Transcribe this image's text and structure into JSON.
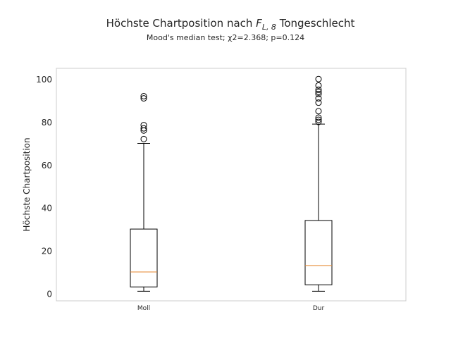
{
  "chart_data": {
    "type": "box",
    "title_main": "Höchste Chartposition nach ",
    "title_math_base": "F",
    "title_math_sub": "L, 8",
    "title_tail": " Tongeschlecht",
    "subtitle": "Mood's median test; χ2=2.368; p=0.124",
    "xlabel": "",
    "ylabel": "Höchste Chartposition",
    "ylim": [
      -3.5,
      105
    ],
    "yticks": [
      0,
      20,
      40,
      60,
      80,
      100
    ],
    "grid": false,
    "categories": [
      "Moll",
      "Dur"
    ],
    "boxes": [
      {
        "name": "Moll",
        "whisker_low": 1,
        "q1": 3,
        "median": 10,
        "q3": 30,
        "whisker_high": 70,
        "outliers": [
          72,
          76,
          77,
          78.5,
          91,
          92
        ]
      },
      {
        "name": "Dur",
        "whisker_low": 1,
        "q1": 4,
        "median": 13,
        "q3": 34,
        "whisker_high": 79,
        "outliers": [
          80,
          81,
          82,
          85,
          89,
          91,
          93,
          94,
          95,
          97,
          100
        ]
      }
    ],
    "colors": {
      "box": "#000000",
      "median": "#e5862c",
      "frame": "#cccccc",
      "text": "#262626"
    }
  }
}
